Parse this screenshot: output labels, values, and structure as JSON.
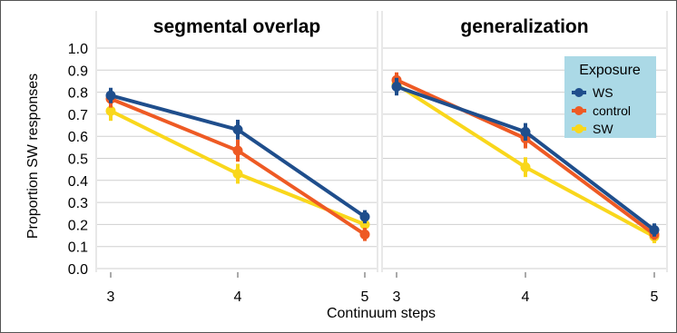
{
  "figure": {
    "ylabel": "Proportion SW responses",
    "xlabel": "Continuum steps"
  },
  "legend": {
    "title": "Exposure",
    "entries": [
      {
        "name": "WS",
        "color": "#1f4e8c"
      },
      {
        "name": "control",
        "color": "#ee5a24"
      },
      {
        "name": "SW",
        "color": "#f9d71c"
      }
    ],
    "background": "#abd9e6"
  },
  "chart_data": [
    {
      "type": "line",
      "title": "segmental overlap",
      "x": [
        3,
        4,
        5
      ],
      "ylim": [
        0.0,
        1.0
      ],
      "yticks": [
        "0.0",
        "0.1",
        "0.2",
        "0.3",
        "0.4",
        "0.5",
        "0.6",
        "0.7",
        "0.8",
        "0.9",
        "1.0"
      ],
      "xticks": [
        "3",
        "4",
        "5"
      ],
      "grid": true,
      "series": [
        {
          "name": "WS",
          "color": "#1f4e8c",
          "values": [
            0.785,
            0.63,
            0.235
          ],
          "errors": [
            0.035,
            0.045,
            0.03
          ]
        },
        {
          "name": "control",
          "color": "#ee5a24",
          "values": [
            0.77,
            0.535,
            0.155
          ],
          "errors": [
            0.04,
            0.05,
            0.03
          ]
        },
        {
          "name": "SW",
          "color": "#f9d71c",
          "values": [
            0.715,
            0.43,
            0.2
          ],
          "errors": [
            0.045,
            0.045,
            0.035
          ]
        }
      ]
    },
    {
      "type": "line",
      "title": "generalization",
      "x": [
        3,
        4,
        5
      ],
      "ylim": [
        0.0,
        1.0
      ],
      "yticks": [
        "0.0",
        "0.1",
        "0.2",
        "0.3",
        "0.4",
        "0.5",
        "0.6",
        "0.7",
        "0.8",
        "0.9",
        "1.0"
      ],
      "xticks": [
        "3",
        "4",
        "5"
      ],
      "grid": true,
      "legend": "top-right",
      "series": [
        {
          "name": "WS",
          "color": "#1f4e8c",
          "values": [
            0.825,
            0.62,
            0.175
          ],
          "errors": [
            0.04,
            0.04,
            0.03
          ]
        },
        {
          "name": "control",
          "color": "#ee5a24",
          "values": [
            0.855,
            0.59,
            0.155
          ],
          "errors": [
            0.035,
            0.045,
            0.025
          ]
        },
        {
          "name": "SW",
          "color": "#f9d71c",
          "values": [
            0.835,
            0.46,
            0.145
          ],
          "errors": [
            0.035,
            0.045,
            0.03
          ]
        }
      ]
    }
  ]
}
